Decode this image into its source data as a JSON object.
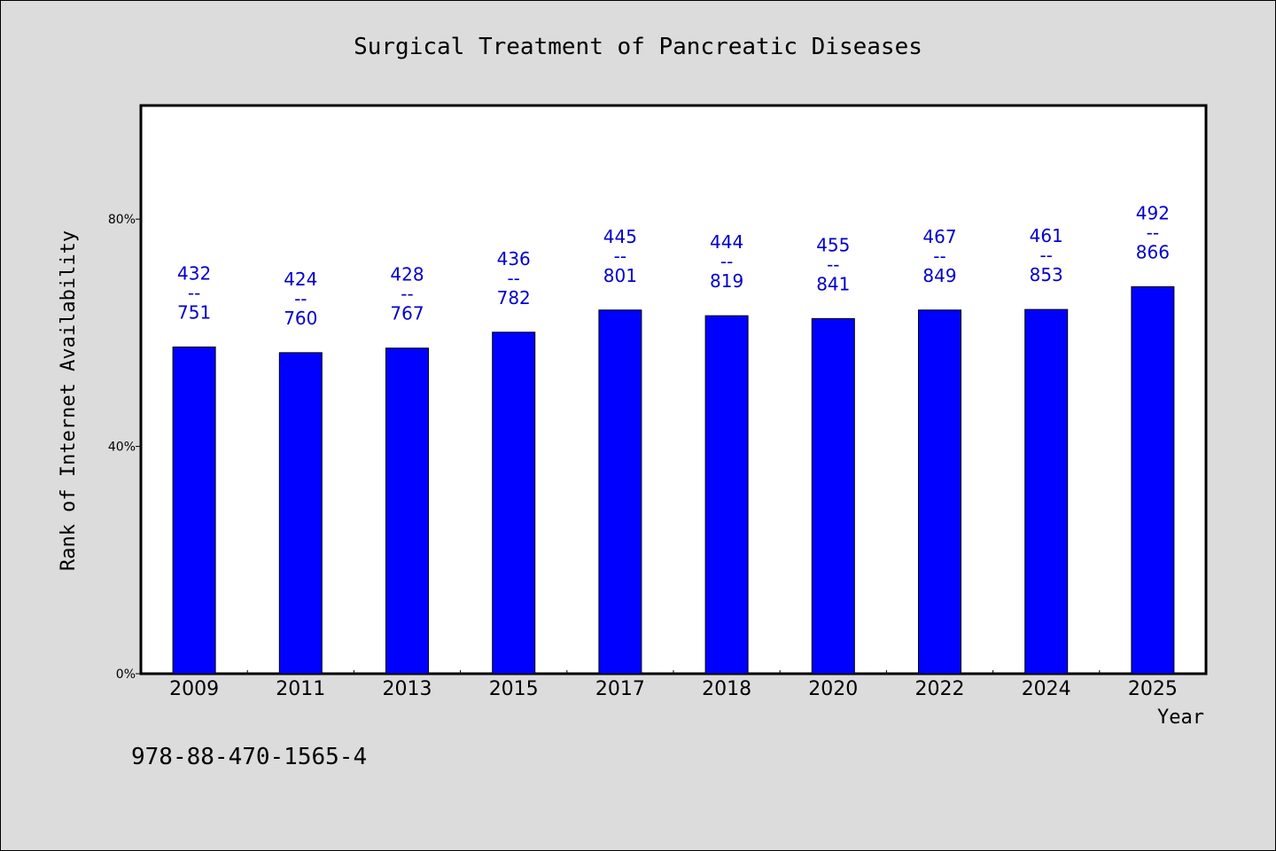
{
  "chart_data": {
    "type": "bar",
    "title": "Surgical Treatment of Pancreatic Diseases",
    "xlabel": "Year",
    "ylabel": "Rank of Internet Availability",
    "ylim": [
      0,
      100
    ],
    "yticks": [
      0,
      40,
      80
    ],
    "ytick_labels": [
      "0%",
      "40%",
      "80%"
    ],
    "categories": [
      "2009",
      "2011",
      "2013",
      "2015",
      "2017",
      "2018",
      "2020",
      "2022",
      "2024",
      "2025"
    ],
    "values": [
      57.5,
      56.5,
      57.3,
      60.1,
      64.0,
      63.0,
      62.5,
      64.0,
      64.1,
      68.1
    ],
    "label_top": [
      "432",
      "424",
      "428",
      "436",
      "445",
      "444",
      "455",
      "467",
      "461",
      "492"
    ],
    "label_sep": "--",
    "label_bottom": [
      "751",
      "760",
      "767",
      "782",
      "801",
      "819",
      "841",
      "849",
      "853",
      "866"
    ],
    "bar_color": "#0000ff",
    "label_color": "#0000cc",
    "grid": false,
    "legend": "none"
  },
  "footnote": "978-88-470-1565-4"
}
